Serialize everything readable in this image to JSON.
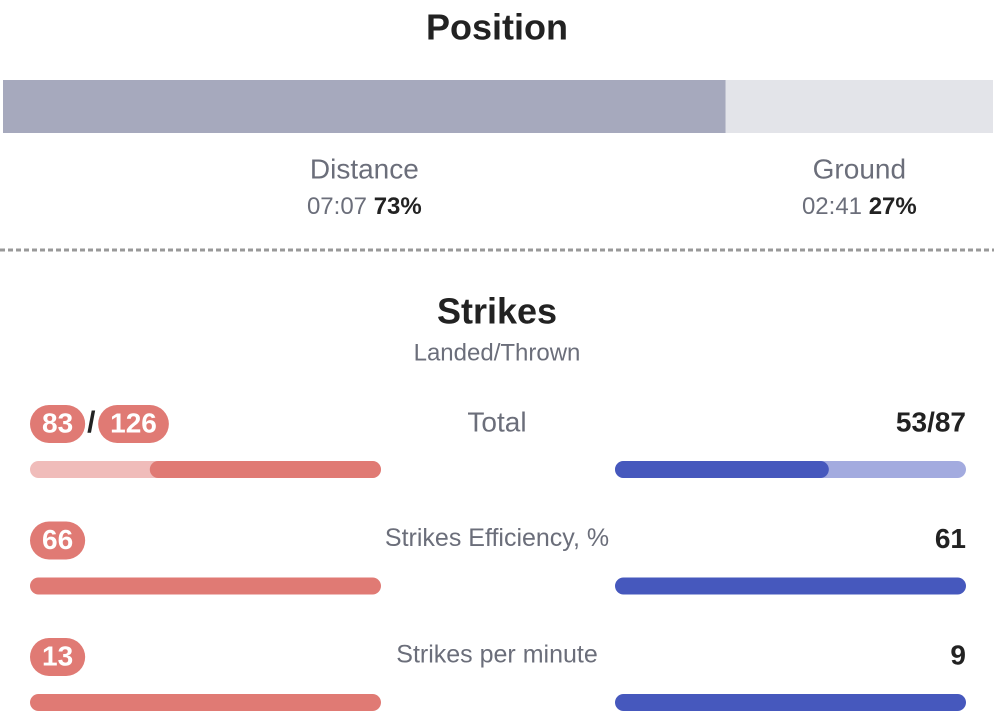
{
  "position": {
    "title": "Position",
    "segments": [
      {
        "label": "Distance",
        "time": "07:07",
        "percent": 73,
        "percent_label": "73%",
        "color": "#a6a9bd"
      },
      {
        "label": "Ground",
        "time": "02:41",
        "percent": 27,
        "percent_label": "27%",
        "color": "#e3e4e9"
      }
    ]
  },
  "strikes": {
    "title": "Strikes",
    "subtitle": "Landed/Thrown",
    "rows": [
      {
        "label": "Total",
        "left": {
          "landed": 83,
          "thrown": 126,
          "separator": "/"
        },
        "right": {
          "landed": 53,
          "thrown": 87,
          "label": "53/87"
        }
      },
      {
        "label": "Strikes Efficiency, %",
        "left": {
          "value": 66
        },
        "right": {
          "value": 61
        }
      },
      {
        "label": "Strikes per minute",
        "left": {
          "value": 13
        },
        "right": {
          "value": 9
        }
      }
    ]
  }
}
